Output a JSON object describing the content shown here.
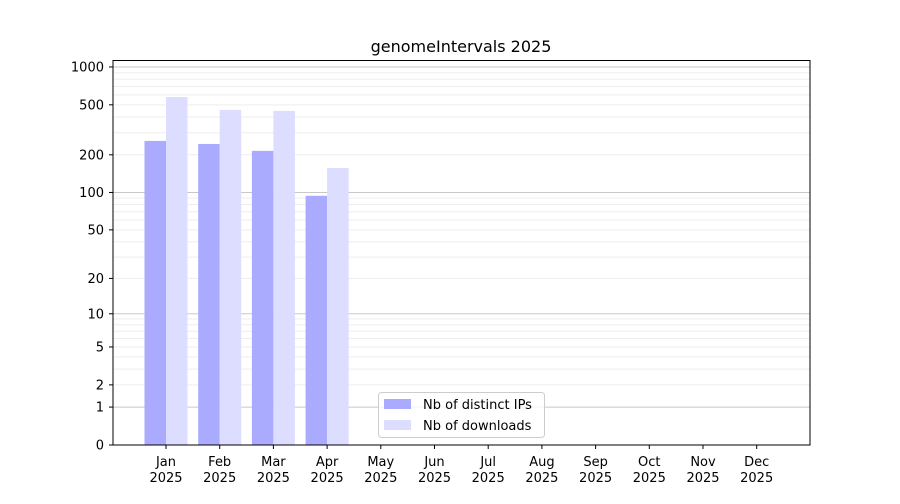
{
  "chart_data": {
    "type": "bar",
    "title": "genomeIntervals 2025",
    "xlabel": "",
    "ylabel": "",
    "yscale": "log(1+y)",
    "ylim": [
      0,
      1000
    ],
    "yticks": [
      0,
      1,
      2,
      5,
      10,
      20,
      50,
      100,
      200,
      500,
      1000
    ],
    "grid": true,
    "legend_position": "lower-center",
    "categories": [
      "Jan\n2025",
      "Feb\n2025",
      "Mar\n2025",
      "Apr\n2025",
      "May\n2025",
      "Jun\n2025",
      "Jul\n2025",
      "Aug\n2025",
      "Sep\n2025",
      "Oct\n2025",
      "Nov\n2025",
      "Dec\n2025"
    ],
    "series": [
      {
        "name": "Nb of distinct IPs",
        "color": "#aaaaff",
        "values": [
          258,
          244,
          215,
          94,
          null,
          null,
          null,
          null,
          null,
          null,
          null,
          null
        ]
      },
      {
        "name": "Nb of downloads",
        "color": "#ddddff",
        "values": [
          577,
          455,
          447,
          157,
          null,
          null,
          null,
          null,
          null,
          null,
          null,
          null
        ]
      }
    ]
  }
}
